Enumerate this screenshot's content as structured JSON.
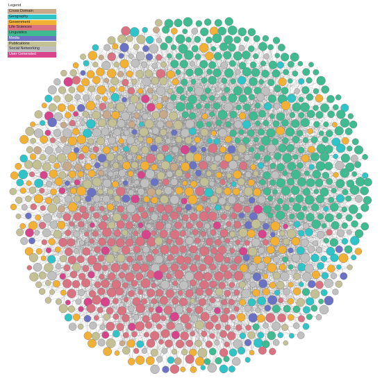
{
  "legend": {
    "title": "Legend",
    "items": [
      {
        "label": "Cross Domain",
        "color": "#c8a98a"
      },
      {
        "label": "Geography",
        "color": "#2ec4c8"
      },
      {
        "label": "Government",
        "color": "#f2b134"
      },
      {
        "label": "Life Sciences",
        "color": "#d97382"
      },
      {
        "label": "Linguistics",
        "color": "#3fba91"
      },
      {
        "label": "Media",
        "color": "#6b72c4"
      },
      {
        "label": "Publications",
        "color": "#c4c095"
      },
      {
        "label": "Social Networking",
        "color": "#c0c0c0"
      },
      {
        "label": "User Generated",
        "color": "#d7448b"
      }
    ]
  },
  "graph": {
    "edge_color": "#8a8a8a",
    "node_stroke": "#777777"
  }
}
